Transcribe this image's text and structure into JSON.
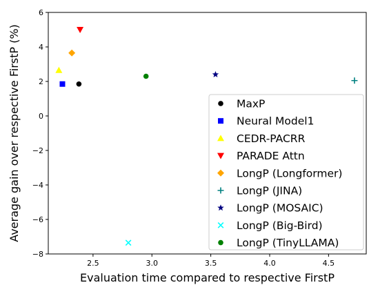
{
  "chart_data": {
    "type": "scatter",
    "title": "",
    "xlabel": "Evaluation time compared to respective FirstP",
    "ylabel": "Average gain over respective FirstP (%)",
    "xlim": [
      2.12,
      4.82
    ],
    "ylim": [
      -8,
      6
    ],
    "xticks": [
      2.5,
      3.0,
      3.5,
      4.0,
      4.5
    ],
    "xtick_labels": [
      "2.5",
      "3.0",
      "3.5",
      "4.0",
      "4.5"
    ],
    "yticks": [
      -8,
      -6,
      -4,
      -2,
      0,
      2,
      4,
      6
    ],
    "ytick_labels": [
      "−8",
      "−6",
      "−4",
      "−2",
      "0",
      "2",
      "4",
      "6"
    ],
    "grid": false,
    "legend_position": "bottom-right",
    "series": [
      {
        "name": "MaxP",
        "marker": "circle",
        "color": "#000000",
        "x": 2.38,
        "y": 1.85
      },
      {
        "name": "Neural Model1",
        "marker": "square",
        "color": "#0000ff",
        "x": 2.24,
        "y": 1.85
      },
      {
        "name": "CEDR-PACRR",
        "marker": "triangle-up",
        "color": "#ffff00",
        "x": 2.21,
        "y": 2.65
      },
      {
        "name": "PARADE Attn",
        "marker": "triangle-down",
        "color": "#ff0000",
        "x": 2.39,
        "y": 5.0
      },
      {
        "name": "LongP (Longformer)",
        "marker": "diamond",
        "color": "#ffa500",
        "x": 2.32,
        "y": 3.65
      },
      {
        "name": "LongP (JINA)",
        "marker": "plus",
        "color": "#008080",
        "x": 4.72,
        "y": 2.05
      },
      {
        "name": "LongP (MOSAIC)",
        "marker": "star",
        "color": "#000080",
        "x": 3.54,
        "y": 2.4
      },
      {
        "name": "LongP (Big-Bird)",
        "marker": "x",
        "color": "#00ffff",
        "x": 2.8,
        "y": -7.35
      },
      {
        "name": "LongP (TinyLLAMA)",
        "marker": "circle",
        "color": "#008000",
        "x": 2.95,
        "y": 2.3
      }
    ]
  }
}
